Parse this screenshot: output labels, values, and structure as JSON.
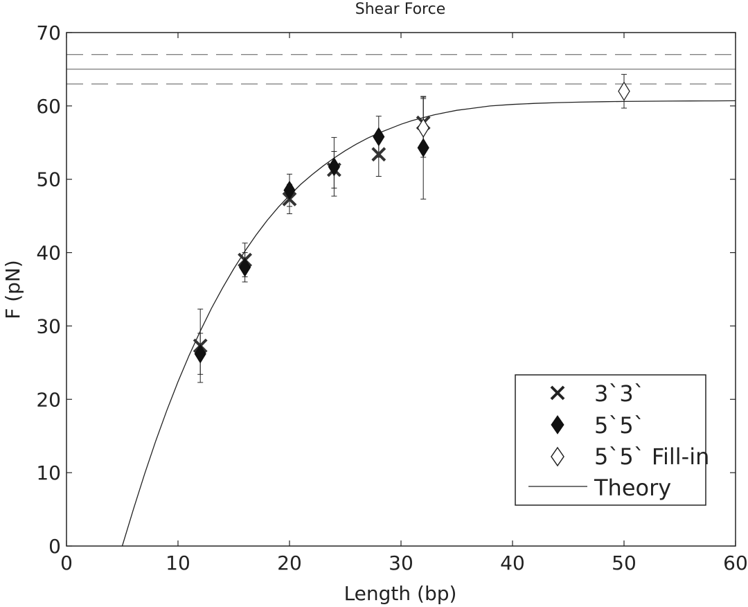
{
  "chart_data": {
    "type": "scatter",
    "title": "Shear Force",
    "xlabel": "Length (bp)",
    "ylabel": "F (pN)",
    "xlim": [
      0,
      60
    ],
    "ylim": [
      0,
      70
    ],
    "xticks": [
      0,
      10,
      20,
      30,
      40,
      50,
      60
    ],
    "yticks": [
      0,
      10,
      20,
      30,
      40,
      50,
      60,
      70
    ],
    "grid": false,
    "legend_position": "lower-right",
    "series": [
      {
        "name": "3`3`",
        "marker": "x",
        "points": [
          {
            "x": 12,
            "y": 27.3,
            "err": 5.0
          },
          {
            "x": 16,
            "y": 39.0,
            "err": 2.3
          },
          {
            "x": 20,
            "y": 47.3,
            "err": 2.0
          },
          {
            "x": 24,
            "y": 51.3,
            "err": 2.5
          },
          {
            "x": 28,
            "y": 53.4,
            "err": 3.0
          },
          {
            "x": 32,
            "y": 57.7,
            "err": 3.5
          }
        ]
      },
      {
        "name": "5`5`",
        "marker": "diamond-filled",
        "points": [
          {
            "x": 12,
            "y": 26.2,
            "err": 2.8
          },
          {
            "x": 16,
            "y": 38.0,
            "err": 2.0
          },
          {
            "x": 20,
            "y": 48.5,
            "err": 2.2
          },
          {
            "x": 24,
            "y": 51.7,
            "err": 4.0
          },
          {
            "x": 28,
            "y": 55.8,
            "err": 2.8
          },
          {
            "x": 32,
            "y": 54.3,
            "err": 7.0
          }
        ]
      },
      {
        "name": "5`5` Fill-in",
        "marker": "diamond-open",
        "points": [
          {
            "x": 32,
            "y": 57.0,
            "err": 4.0
          },
          {
            "x": 50,
            "y": 62.0,
            "err": 2.3
          }
        ]
      },
      {
        "name": "Theory",
        "marker": "line",
        "x": [
          5,
          6,
          7,
          8,
          9,
          10,
          11,
          12,
          13,
          14,
          15,
          16,
          17,
          18,
          19,
          20,
          21,
          22,
          23,
          24,
          25,
          26,
          27,
          28,
          29,
          30,
          31,
          32,
          33,
          34,
          35,
          36,
          37,
          38,
          40,
          42,
          44,
          46,
          48,
          50,
          52,
          54,
          56,
          58,
          60
        ],
        "y": [
          0,
          5.0,
          9.8,
          14.3,
          18.5,
          22.4,
          26.0,
          29.3,
          32.4,
          35.2,
          37.8,
          40.2,
          42.4,
          44.4,
          46.2,
          47.8,
          49.3,
          50.6,
          51.8,
          52.9,
          53.9,
          54.8,
          55.6,
          56.3,
          56.9,
          57.5,
          58.0,
          58.4,
          58.8,
          59.1,
          59.4,
          59.6,
          59.8,
          60.0,
          60.2,
          60.35,
          60.45,
          60.52,
          60.57,
          60.61,
          60.64,
          60.66,
          60.68,
          60.69,
          60.7
        ]
      }
    ],
    "reference_lines": [
      {
        "y": 67,
        "style": "dashed"
      },
      {
        "y": 65,
        "style": "solid"
      },
      {
        "y": 63,
        "style": "dashed"
      }
    ]
  }
}
